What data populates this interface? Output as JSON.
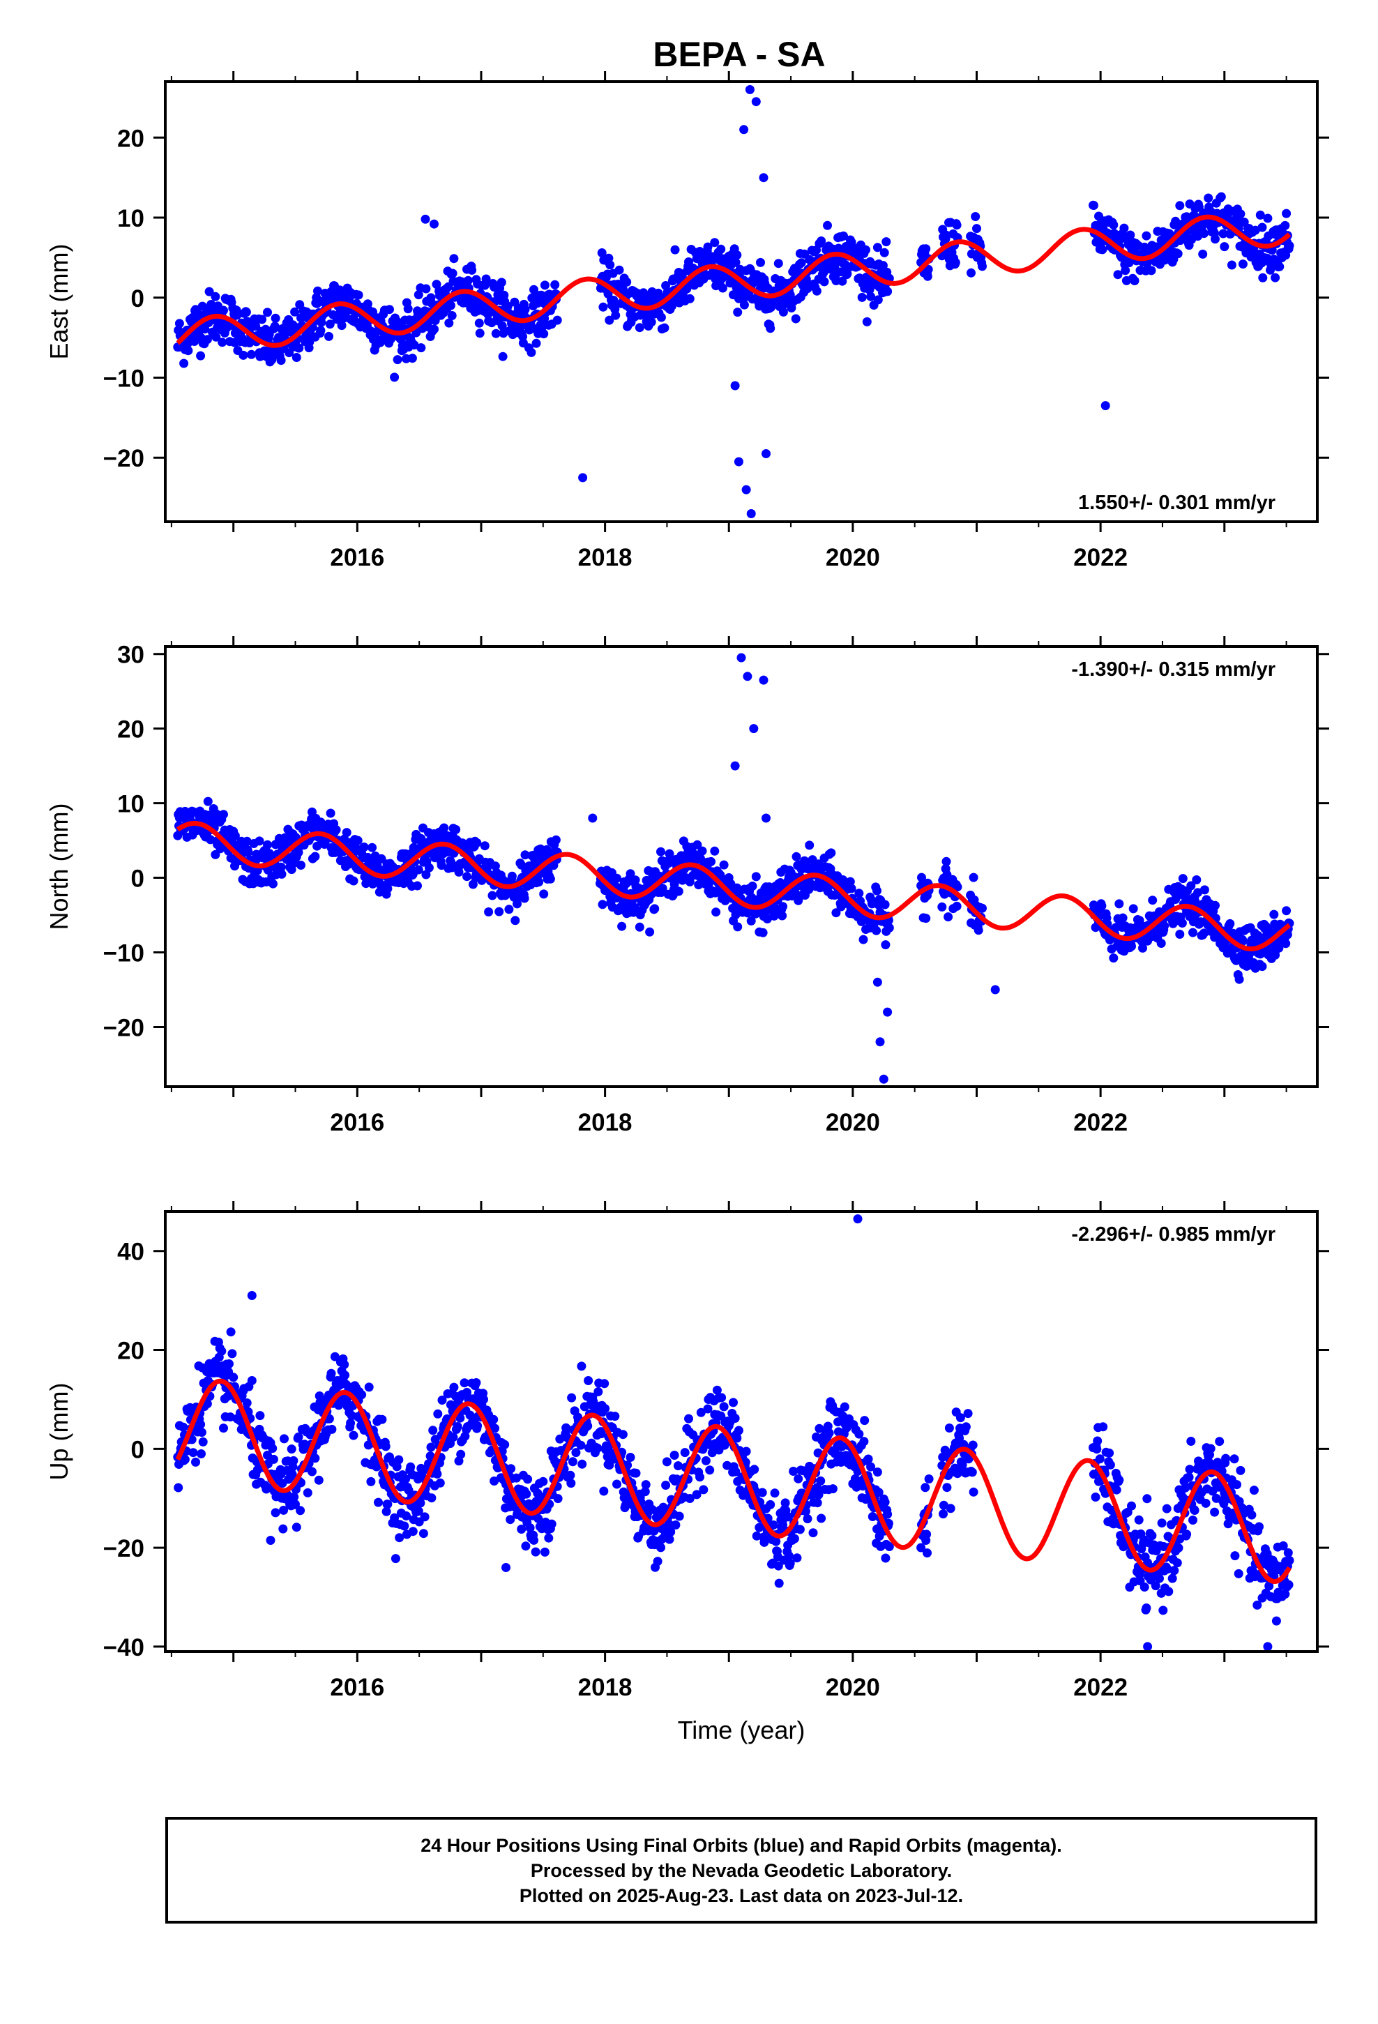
{
  "title": "BEPA - SA",
  "colors": {
    "final_orbits": "#0000ff",
    "model_fit": "#ff0000",
    "frame": "#000000"
  },
  "chart_data": [
    {
      "type": "scatter",
      "name": "east",
      "ylabel": "East (mm)",
      "xlabel": "",
      "xlim": [
        2014.45,
        2023.75
      ],
      "ylim": [
        -28,
        27
      ],
      "yticks": [
        -20,
        -10,
        0,
        10,
        20
      ],
      "xticks": [
        2016,
        2018,
        2020,
        2022
      ],
      "rate_label": "1.550+/- 0.301 mm/yr",
      "rate_position": "bottom-right",
      "model": {
        "t0": 2014.55,
        "offset": -5.0,
        "rate": 1.55,
        "amp": 2.2,
        "phase_year": 2014.6
      },
      "scatter_sigma": 1.6,
      "data_gaps": [
        [
          2017.62,
          2017.96
        ],
        [
          2020.3,
          2020.55
        ],
        [
          2020.62,
          2020.72
        ],
        [
          2020.85,
          2020.95
        ],
        [
          2021.05,
          2021.94
        ]
      ],
      "notable_points": [
        {
          "x": 2017.82,
          "y": -22.5
        },
        {
          "x": 2022.04,
          "y": -13.5
        },
        {
          "x": 2016.55,
          "y": 9.8
        },
        {
          "x": 2016.62,
          "y": 9.2
        },
        {
          "x": 2019.17,
          "y": 26.0
        },
        {
          "x": 2019.22,
          "y": 24.5
        },
        {
          "x": 2019.12,
          "y": 21.0
        },
        {
          "x": 2019.18,
          "y": -27.0
        },
        {
          "x": 2019.14,
          "y": -24.0
        },
        {
          "x": 2019.08,
          "y": -20.5
        },
        {
          "x": 2019.3,
          "y": -19.5
        },
        {
          "x": 2019.05,
          "y": -11.0
        },
        {
          "x": 2019.28,
          "y": 15.0
        }
      ]
    },
    {
      "type": "scatter",
      "name": "north",
      "ylabel": "North (mm)",
      "xlabel": "",
      "xlim": [
        2014.45,
        2023.75
      ],
      "ylim": [
        -28,
        31
      ],
      "yticks": [
        -20,
        -10,
        0,
        10,
        20,
        30
      ],
      "xticks": [
        2016,
        2018,
        2020,
        2022
      ],
      "rate_label": "-1.390+/- 0.315 mm/yr",
      "rate_position": "top-right",
      "model": {
        "t0": 2014.55,
        "offset": 5.0,
        "rate": -1.39,
        "amp": 2.5,
        "phase_year": 2014.45
      },
      "scatter_sigma": 1.5,
      "data_gaps": [
        [
          2017.62,
          2017.96
        ],
        [
          2020.3,
          2020.55
        ],
        [
          2020.62,
          2020.72
        ],
        [
          2020.85,
          2020.95
        ],
        [
          2021.05,
          2021.94
        ]
      ],
      "notable_points": [
        {
          "x": 2019.1,
          "y": 29.5
        },
        {
          "x": 2019.15,
          "y": 27.0
        },
        {
          "x": 2019.28,
          "y": 26.5
        },
        {
          "x": 2019.2,
          "y": 20.0
        },
        {
          "x": 2019.05,
          "y": 15.0
        },
        {
          "x": 2019.3,
          "y": 8.0
        },
        {
          "x": 2020.25,
          "y": -27.0
        },
        {
          "x": 2020.22,
          "y": -22.0
        },
        {
          "x": 2020.28,
          "y": -18.0
        },
        {
          "x": 2020.2,
          "y": -14.0
        },
        {
          "x": 2021.15,
          "y": -15.0
        },
        {
          "x": 2017.9,
          "y": 8.0
        }
      ]
    },
    {
      "type": "scatter",
      "name": "up",
      "ylabel": "Up (mm)",
      "xlabel": "Time (year)",
      "xlim": [
        2014.45,
        2023.75
      ],
      "ylim": [
        -41,
        48
      ],
      "yticks": [
        -40,
        -20,
        0,
        20,
        40
      ],
      "xticks": [
        2016,
        2018,
        2020,
        2022
      ],
      "rate_label": "-2.296+/- 0.985 mm/yr",
      "rate_position": "top-right",
      "model": {
        "t0": 2014.55,
        "offset": 4.0,
        "rate": -2.296,
        "amp": 10.5,
        "phase_year": 2014.65
      },
      "scatter_sigma": 4.0,
      "data_gaps": [
        [
          2020.3,
          2020.55
        ],
        [
          2020.62,
          2020.72
        ],
        [
          2020.98,
          2021.94
        ]
      ],
      "notable_points": [
        {
          "x": 2020.04,
          "y": 46.5
        },
        {
          "x": 2015.15,
          "y": 31.0
        },
        {
          "x": 2022.38,
          "y": -40.0
        },
        {
          "x": 2023.35,
          "y": -40.0
        },
        {
          "x": 2017.2,
          "y": -24.0
        },
        {
          "x": 2015.3,
          "y": -18.5
        }
      ]
    }
  ],
  "footer": {
    "lines": [
      "24 Hour Positions Using Final Orbits (blue) and Rapid Orbits (magenta).",
      "Processed by the Nevada Geodetic Laboratory.",
      "Plotted on 2025-Aug-23. Last data on 2023-Jul-12."
    ]
  }
}
